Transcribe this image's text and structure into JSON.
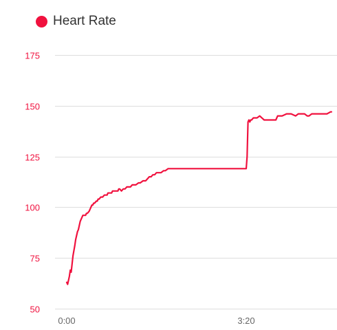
{
  "colors": {
    "series": "#f0113e",
    "ytick": "#f0113e",
    "xtick": "#666666",
    "grid": "#dddddd",
    "legend_text": "#333333"
  },
  "chart_data": {
    "type": "line",
    "title": "",
    "xlabel": "",
    "ylabel": "",
    "ylim": [
      50,
      175
    ],
    "yticks": [
      50,
      75,
      100,
      125,
      150,
      175
    ],
    "xticks": [
      {
        "label": "0:00",
        "seconds": 0
      },
      {
        "label": "3:20",
        "seconds": 200
      }
    ],
    "grid": true,
    "legend": {
      "position": "top-left"
    },
    "series": [
      {
        "name": "Heart Rate",
        "color": "#f0113e",
        "x": [
          0,
          1,
          3,
          4,
          5,
          6,
          7,
          9,
          10,
          12,
          13,
          14,
          15,
          16,
          18,
          19,
          21,
          22,
          23,
          25,
          26,
          27,
          28,
          29,
          30,
          31,
          33,
          34,
          35,
          36,
          38,
          40,
          42,
          45,
          46,
          48,
          50,
          51,
          53,
          55,
          57,
          58,
          59,
          61,
          63,
          65,
          67,
          69,
          71,
          73,
          75,
          77,
          80,
          82,
          85,
          88,
          90,
          92,
          94,
          96,
          98,
          100,
          103,
          105,
          108,
          110,
          113,
          115,
          118,
          120,
          123,
          125,
          128,
          130,
          133,
          135,
          138,
          140,
          143,
          145,
          148,
          150,
          153,
          155,
          158,
          160,
          163,
          165,
          168,
          170,
          173,
          175,
          178,
          180,
          185,
          190,
          195,
          198,
          200,
          201,
          202,
          203,
          204,
          205,
          206,
          208,
          210,
          212,
          215,
          220,
          222,
          225,
          230,
          233,
          235,
          240,
          245,
          250,
          255,
          258,
          260,
          265,
          268,
          270,
          273,
          276,
          278,
          280,
          283,
          286,
          290,
          294,
          295
        ],
        "y": [
          63,
          62,
          66,
          69,
          68,
          72,
          76,
          81,
          84,
          88,
          89,
          91,
          93,
          94,
          96,
          96,
          96,
          97,
          97,
          98,
          99,
          100,
          101,
          101,
          102,
          102,
          103,
          103,
          104,
          104,
          105,
          105,
          106,
          106,
          107,
          107,
          107,
          108,
          108,
          108,
          108,
          109,
          109,
          108,
          109,
          109,
          110,
          110,
          110,
          111,
          111,
          111,
          112,
          112,
          113,
          113,
          114,
          115,
          115,
          116,
          116,
          117,
          117,
          117,
          118,
          118,
          119,
          119,
          119,
          119,
          119,
          119,
          119,
          119,
          119,
          119,
          119,
          119,
          119,
          119,
          119,
          119,
          119,
          119,
          119,
          119,
          119,
          119,
          119,
          119,
          119,
          119,
          119,
          119,
          119,
          119,
          119,
          119,
          119,
          125,
          142,
          143,
          142,
          143,
          143,
          144,
          144,
          144,
          145,
          143,
          143,
          143,
          143,
          143,
          145,
          145,
          146,
          146,
          145,
          146,
          146,
          146,
          145,
          145,
          146,
          146,
          146,
          146,
          146,
          146,
          146,
          147,
          147
        ]
      }
    ]
  }
}
